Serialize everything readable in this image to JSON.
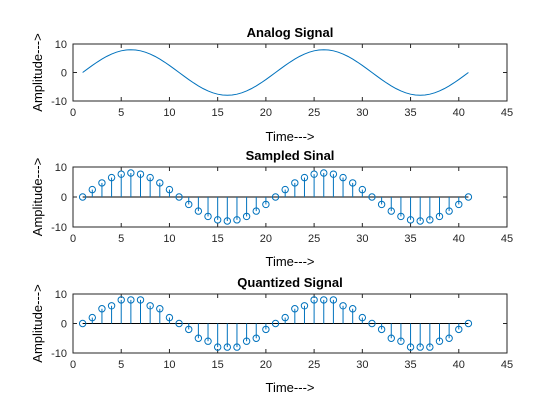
{
  "chart_data": [
    {
      "type": "line",
      "title": "Analog Signal",
      "xlabel": "Time--->",
      "ylabel": "Amplitude--->",
      "xlim": [
        0,
        45
      ],
      "ylim": [
        -10,
        10
      ],
      "xticks": [
        0,
        5,
        10,
        15,
        20,
        25,
        30,
        35,
        40,
        45
      ],
      "yticks": [
        -10,
        0,
        10
      ],
      "grid": false,
      "color": "#0072BD",
      "series": [
        {
          "x": [
            1,
            1.5,
            2,
            2.5,
            3,
            3.5,
            4,
            4.5,
            5,
            5.5,
            6,
            6.5,
            7,
            7.5,
            8,
            8.5,
            9,
            9.5,
            10,
            10.5,
            11,
            11.5,
            12,
            12.5,
            13,
            13.5,
            14,
            14.5,
            15,
            15.5,
            16,
            16.5,
            17,
            17.5,
            18,
            18.5,
            19,
            19.5,
            20,
            20.5,
            21,
            21.5,
            22,
            22.5,
            23,
            23.5,
            24,
            24.5,
            25,
            25.5,
            26,
            26.5,
            27,
            27.5,
            28,
            28.5,
            29,
            29.5,
            30,
            30.5,
            31,
            31.5,
            32,
            32.5,
            33,
            33.5,
            34,
            34.5,
            35,
            35.5,
            36,
            36.5,
            37,
            37.5,
            38,
            38.5,
            39,
            39.5,
            40,
            40.5,
            41
          ],
          "values": [
            0,
            1.25,
            2.47,
            3.63,
            4.7,
            5.66,
            6.47,
            7.13,
            7.61,
            7.9,
            8.0,
            7.9,
            7.61,
            7.13,
            6.47,
            5.66,
            4.7,
            3.63,
            2.47,
            1.25,
            0,
            -1.25,
            -2.47,
            -3.63,
            -4.7,
            -5.66,
            -6.47,
            -7.13,
            -7.61,
            -7.9,
            -8.0,
            -7.9,
            -7.61,
            -7.13,
            -6.47,
            -5.66,
            -4.7,
            -3.63,
            -2.47,
            -1.25,
            0,
            1.25,
            2.47,
            3.63,
            4.7,
            5.66,
            6.47,
            7.13,
            7.61,
            7.9,
            8.0,
            7.9,
            7.61,
            7.13,
            6.47,
            5.66,
            4.7,
            3.63,
            2.47,
            1.25,
            0,
            -1.25,
            -2.47,
            -3.63,
            -4.7,
            -5.66,
            -6.47,
            -7.13,
            -7.61,
            -7.9,
            -8.0,
            -7.9,
            -7.61,
            -7.13,
            -6.47,
            -5.66,
            -4.7,
            -3.63,
            -2.47,
            -1.25,
            0
          ]
        }
      ]
    },
    {
      "type": "stem",
      "title": "Sampled Sinal",
      "xlabel": "Time--->",
      "ylabel": "Amplitude--->",
      "xlim": [
        0,
        45
      ],
      "ylim": [
        -10,
        10
      ],
      "xticks": [
        0,
        5,
        10,
        15,
        20,
        25,
        30,
        35,
        40,
        45
      ],
      "yticks": [
        -10,
        0,
        10
      ],
      "grid": false,
      "color": "#0072BD",
      "series": [
        {
          "x": [
            1,
            2,
            3,
            4,
            5,
            6,
            7,
            8,
            9,
            10,
            11,
            12,
            13,
            14,
            15,
            16,
            17,
            18,
            19,
            20,
            21,
            22,
            23,
            24,
            25,
            26,
            27,
            28,
            29,
            30,
            31,
            32,
            33,
            34,
            35,
            36,
            37,
            38,
            39,
            40,
            41
          ],
          "values": [
            0,
            2.47,
            4.7,
            6.47,
            7.61,
            8.0,
            7.61,
            6.47,
            4.7,
            2.47,
            0,
            -2.47,
            -4.7,
            -6.47,
            -7.61,
            -8.0,
            -7.61,
            -6.47,
            -4.7,
            -2.47,
            0,
            2.47,
            4.7,
            6.47,
            7.61,
            8.0,
            7.61,
            6.47,
            4.7,
            2.47,
            0,
            -2.47,
            -4.7,
            -6.47,
            -7.61,
            -8.0,
            -7.61,
            -6.47,
            -4.7,
            -2.47,
            0
          ]
        }
      ]
    },
    {
      "type": "stem",
      "title": "Quantized Signal",
      "xlabel": "Time--->",
      "ylabel": "Amplitude--->",
      "xlim": [
        0,
        45
      ],
      "ylim": [
        -10,
        10
      ],
      "xticks": [
        0,
        5,
        10,
        15,
        20,
        25,
        30,
        35,
        40,
        45
      ],
      "yticks": [
        -10,
        0,
        10
      ],
      "grid": false,
      "color": "#0072BD",
      "series": [
        {
          "x": [
            1,
            2,
            3,
            4,
            5,
            6,
            7,
            8,
            9,
            10,
            11,
            12,
            13,
            14,
            15,
            16,
            17,
            18,
            19,
            20,
            21,
            22,
            23,
            24,
            25,
            26,
            27,
            28,
            29,
            30,
            31,
            32,
            33,
            34,
            35,
            36,
            37,
            38,
            39,
            40,
            41
          ],
          "values": [
            0,
            2,
            5,
            6,
            8,
            8,
            8,
            6,
            5,
            2,
            0,
            -2,
            -5,
            -6,
            -8,
            -8,
            -8,
            -6,
            -5,
            -2,
            0,
            2,
            5,
            6,
            8,
            8,
            8,
            6,
            5,
            2,
            0,
            -2,
            -5,
            -6,
            -8,
            -8,
            -8,
            -6,
            -5,
            -2,
            0
          ]
        }
      ]
    }
  ]
}
